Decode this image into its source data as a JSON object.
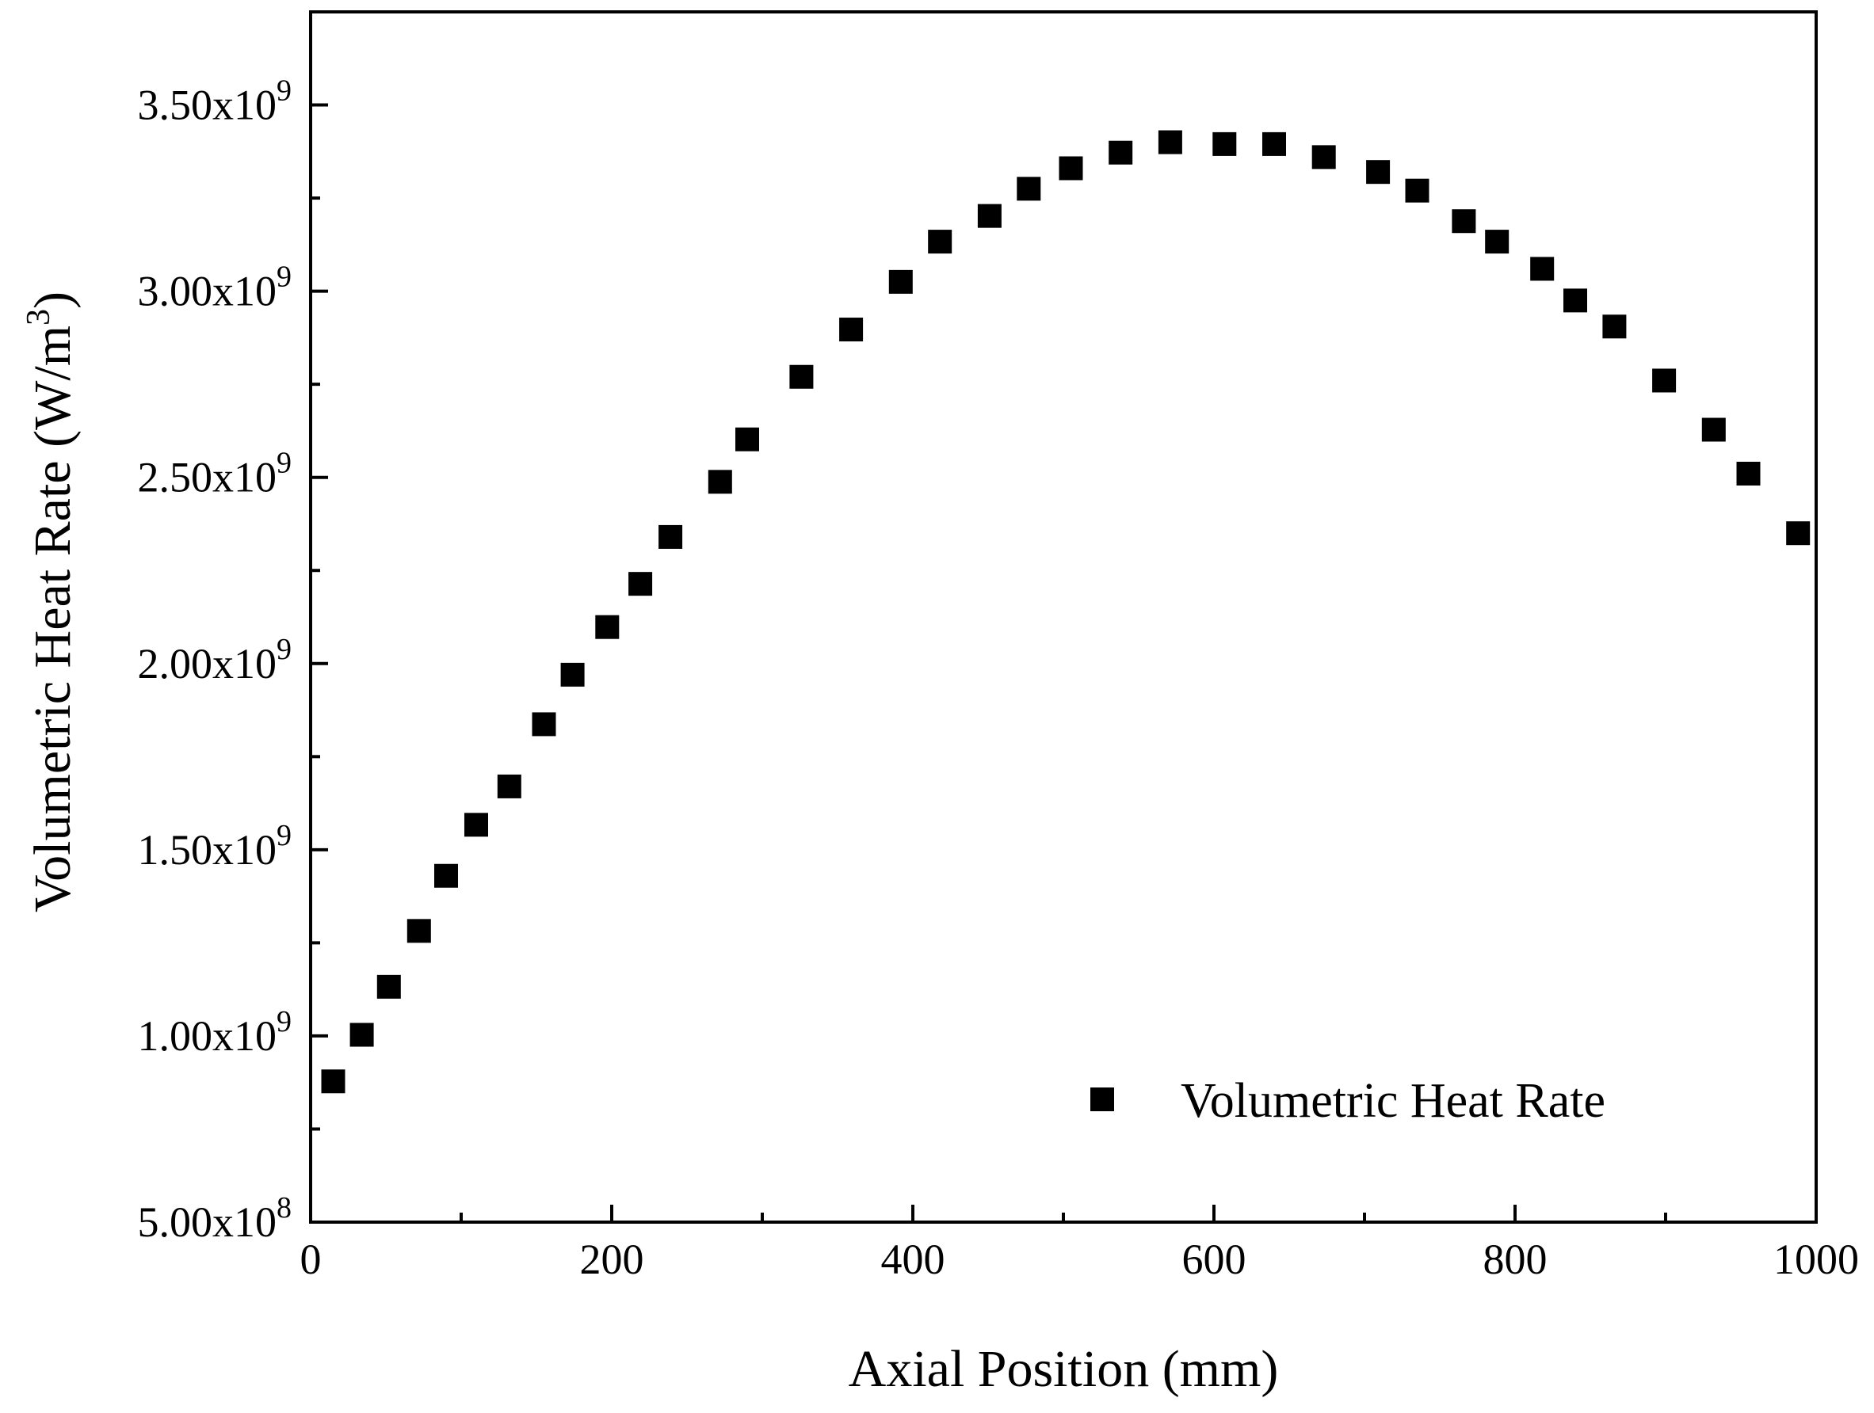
{
  "chart_data": {
    "type": "scatter",
    "title": "",
    "xlabel": "Axial Position (mm)",
    "ylabel": "Volumetric Heat  Rate (W/m",
    "ylabel_superscript": "3",
    "ylabel_suffix": ")",
    "xlim": [
      0,
      1000
    ],
    "ylim": [
      500000000,
      3750000000
    ],
    "grid": false,
    "legend_position": "bottom-right",
    "x_ticks": [
      {
        "value": 0,
        "label": "0"
      },
      {
        "value": 200,
        "label": "200"
      },
      {
        "value": 400,
        "label": "400"
      },
      {
        "value": 600,
        "label": "600"
      },
      {
        "value": 800,
        "label": "800"
      },
      {
        "value": 1000,
        "label": "1000"
      }
    ],
    "y_ticks": [
      {
        "value": 500000000,
        "mantissa": "5.00x10",
        "exponent": "8"
      },
      {
        "value": 1000000000,
        "mantissa": "1.00x10",
        "exponent": "9"
      },
      {
        "value": 1500000000,
        "mantissa": "1.50x10",
        "exponent": "9"
      },
      {
        "value": 2000000000,
        "mantissa": "2.00x10",
        "exponent": "9"
      },
      {
        "value": 2500000000,
        "mantissa": "2.50x10",
        "exponent": "9"
      },
      {
        "value": 3000000000,
        "mantissa": "3.00x10",
        "exponent": "9"
      },
      {
        "value": 3500000000,
        "mantissa": "3.50x10",
        "exponent": "9"
      }
    ],
    "series": [
      {
        "name": "Volumetric Heat  Rate",
        "marker": "square",
        "color": "#000000",
        "points": [
          [
            15,
            878000000
          ],
          [
            34,
            1003000000
          ],
          [
            52,
            1132000000
          ],
          [
            72,
            1282000000
          ],
          [
            90,
            1430000000
          ],
          [
            110,
            1567000000
          ],
          [
            132,
            1670000000
          ],
          [
            155,
            1837000000
          ],
          [
            174,
            1970000000
          ],
          [
            197,
            2098000000
          ],
          [
            219,
            2214000000
          ],
          [
            239,
            2340000000
          ],
          [
            272,
            2488000000
          ],
          [
            290,
            2602000000
          ],
          [
            326,
            2770000000
          ],
          [
            359,
            2897000000
          ],
          [
            392,
            3025000000
          ],
          [
            418,
            3133000000
          ],
          [
            451,
            3202000000
          ],
          [
            477,
            3275000000
          ],
          [
            505,
            3330000000
          ],
          [
            538,
            3372000000
          ],
          [
            571,
            3400000000
          ],
          [
            607,
            3395000000
          ],
          [
            640,
            3395000000
          ],
          [
            673,
            3360000000
          ],
          [
            709,
            3320000000
          ],
          [
            735,
            3270000000
          ],
          [
            766,
            3188000000
          ],
          [
            788,
            3133000000
          ],
          [
            818,
            3060000000
          ],
          [
            840,
            2975000000
          ],
          [
            866,
            2905000000
          ],
          [
            899,
            2760000000
          ],
          [
            932,
            2628000000
          ],
          [
            955,
            2510000000
          ],
          [
            988,
            2350000000
          ]
        ]
      }
    ]
  }
}
